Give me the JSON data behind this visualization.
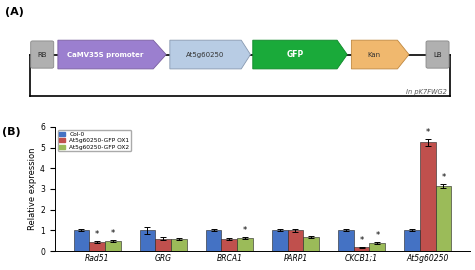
{
  "panel_A_label": "(A)",
  "panel_B_label": "(B)",
  "vector_label": "In pK7FWG2",
  "rb_label": "RB",
  "lb_label": "LB",
  "elements": [
    {
      "label": "CaMV35S promoter",
      "color": "#9b7fcf",
      "type": "arrow"
    },
    {
      "label": "At5g60250",
      "color": "#b8c8e0",
      "type": "rect"
    },
    {
      "label": "GFP",
      "color": "#1aaa3a",
      "type": "rect"
    },
    {
      "label": "Kan",
      "color": "#f0b86e",
      "type": "arrow"
    }
  ],
  "categories": [
    "Rad51",
    "GRG",
    "BRCA1",
    "PARP1",
    "CKCB1;1",
    "At5g60250"
  ],
  "col0_values": [
    1.0,
    1.0,
    1.0,
    1.0,
    1.0,
    1.0
  ],
  "ox1_values": [
    0.45,
    0.6,
    0.6,
    1.0,
    0.18,
    5.25
  ],
  "ox2_values": [
    0.5,
    0.58,
    0.62,
    0.68,
    0.38,
    3.15
  ],
  "col0_err": [
    0.05,
    0.15,
    0.05,
    0.05,
    0.05,
    0.05
  ],
  "ox1_err": [
    0.05,
    0.08,
    0.05,
    0.08,
    0.02,
    0.18
  ],
  "ox2_err": [
    0.05,
    0.05,
    0.05,
    0.06,
    0.04,
    0.08
  ],
  "col0_color": "#4472c4",
  "ox1_color": "#c0504d",
  "ox2_color": "#9bbb59",
  "legend_labels": [
    "Col-0",
    "At5g60250-GFP OX1",
    "At5g60250-GFP OX2"
  ],
  "ylabel": "Relative expression",
  "ylim": [
    0,
    6
  ],
  "yticks": [
    0,
    1,
    2,
    3,
    4,
    5,
    6
  ],
  "star_ox1": [
    true,
    false,
    false,
    false,
    true,
    true
  ],
  "star_ox2": [
    true,
    false,
    true,
    false,
    true,
    true
  ],
  "italic_labels": [
    "Rad51",
    "GRG",
    "BRCA1",
    "PARP1",
    "CKCB1;1",
    "At5g60250"
  ]
}
